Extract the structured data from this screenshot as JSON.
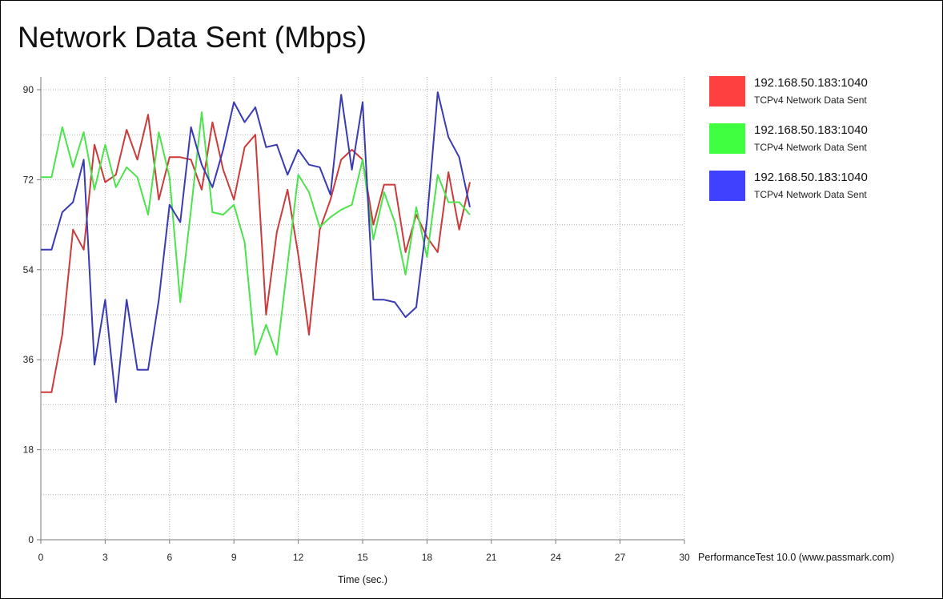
{
  "chart_data": {
    "type": "line",
    "title": "Network Data Sent (Mbps)",
    "xlabel": "Time (sec.)",
    "ylabel": "",
    "xlim": [
      0,
      30
    ],
    "ylim": [
      0,
      90
    ],
    "x_ticks": [
      0,
      3,
      6,
      9,
      12,
      15,
      18,
      21,
      24,
      27,
      30
    ],
    "y_ticks": [
      0,
      18,
      36,
      54,
      72,
      90
    ],
    "grid": true,
    "legend_position": "right",
    "credit": "PerformanceTest 10.0 (www.passmark.com)",
    "series": [
      {
        "name": "192.168.50.183:1040",
        "subtitle": "TCPv4 Network Data Sent",
        "color": "#ff4040",
        "line_color": "#cc3b3b",
        "x": [
          0,
          0.5,
          1,
          1.5,
          2,
          2.5,
          3,
          3.5,
          4,
          4.5,
          5,
          5.5,
          6,
          6.5,
          7,
          7.5,
          8,
          8.5,
          9,
          9.5,
          10,
          10.5,
          11,
          11.5,
          12,
          12.5,
          13,
          13.5,
          14,
          14.5,
          15,
          15.5,
          16,
          16.5,
          17,
          17.5,
          18,
          18.5,
          19,
          19.5,
          20
        ],
        "values": [
          29.5,
          29.5,
          41,
          62,
          58,
          79,
          71.5,
          73,
          82,
          76,
          85,
          68,
          76.5,
          76.5,
          76,
          70,
          83.5,
          74,
          68,
          78.5,
          81,
          45,
          61.5,
          70,
          57,
          41,
          62,
          68,
          76,
          78,
          76,
          63,
          71,
          71,
          57.5,
          65,
          60.5,
          57.5,
          73.5,
          62,
          71.5
        ]
      },
      {
        "name": "192.168.50.183:1040",
        "subtitle": "TCPv4 Network Data Sent",
        "color": "#40ff40",
        "line_color": "#4ce44c",
        "x": [
          0,
          0.5,
          1,
          1.5,
          2,
          2.5,
          3,
          3.5,
          4,
          4.5,
          5,
          5.5,
          6,
          6.5,
          7,
          7.5,
          8,
          8.5,
          9,
          9.5,
          10,
          10.5,
          11,
          11.5,
          12,
          12.5,
          13,
          13.5,
          14,
          14.5,
          15,
          15.5,
          16,
          16.5,
          17,
          17.5,
          18,
          18.5,
          19,
          19.5,
          20
        ],
        "values": [
          72.5,
          72.5,
          82.5,
          74.5,
          81.5,
          70,
          79,
          70.5,
          74.5,
          72.5,
          65,
          81.5,
          72.5,
          47.5,
          66,
          85.5,
          65.5,
          65,
          67,
          59.5,
          37,
          43,
          37,
          55,
          73,
          69.5,
          62.5,
          64.5,
          66,
          67,
          76,
          60,
          69.5,
          63.5,
          53,
          66.5,
          56.5,
          73,
          67.5,
          67.5,
          65
        ]
      },
      {
        "name": "192.168.50.183:1040",
        "subtitle": "TCPv4 Network Data Sent",
        "color": "#4040ff",
        "line_color": "#3a3ab3",
        "x": [
          0,
          0.5,
          1,
          1.5,
          2,
          2.5,
          3,
          3.5,
          4,
          4.5,
          5,
          5.5,
          6,
          6.5,
          7,
          7.5,
          8,
          8.5,
          9,
          9.5,
          10,
          10.5,
          11,
          11.5,
          12,
          12.5,
          13,
          13.5,
          14,
          14.5,
          15,
          15.5,
          16,
          16.5,
          17,
          17.5,
          18,
          18.5,
          19,
          19.5,
          20
        ],
        "values": [
          58,
          58,
          65.5,
          67.5,
          76,
          35,
          48,
          27.5,
          48,
          34,
          34,
          48,
          67,
          63.5,
          82.5,
          75,
          70.5,
          78,
          87.5,
          83.5,
          86.5,
          78.5,
          79,
          73,
          78,
          75,
          74.5,
          69,
          89,
          74,
          87.5,
          48,
          48,
          47.5,
          44.5,
          46.5,
          64,
          89.5,
          80.5,
          76.5,
          66.5
        ]
      }
    ]
  }
}
